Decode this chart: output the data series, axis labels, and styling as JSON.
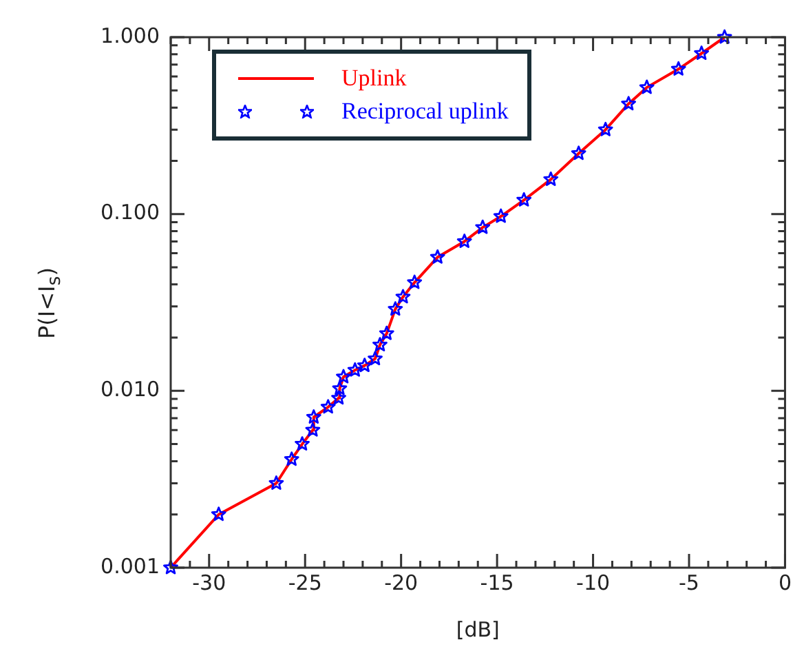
{
  "chart_data": {
    "type": "line",
    "xlabel": "[dB]",
    "ylabel": "P(I<I$_{s}$)",
    "x": [
      -32,
      -29.5,
      -26.5,
      -25.7,
      -25.15,
      -24.6,
      -24.55,
      -23.8,
      -23.25,
      -23.2,
      -23.0,
      -22.4,
      -21.9,
      -21.35,
      -21.1,
      -20.75,
      -20.3,
      -19.9,
      -19.3,
      -18.1,
      -16.7,
      -15.75,
      -14.8,
      -13.6,
      -12.2,
      -10.75,
      -9.35,
      -8.15,
      -7.2,
      -5.55,
      -4.35,
      -3.15
    ],
    "series": [
      {
        "name": "Uplink",
        "type": "line",
        "marker": "none",
        "color": "#ff0000",
        "values": [
          0.001,
          0.002,
          0.003,
          0.0041,
          0.005,
          0.006,
          0.0071,
          0.0081,
          0.0091,
          0.0103,
          0.012,
          0.0131,
          0.0139,
          0.0152,
          0.0182,
          0.0211,
          0.029,
          0.034,
          0.041,
          0.057,
          0.07,
          0.084,
          0.097,
          0.12,
          0.157,
          0.22,
          0.3,
          0.42,
          0.52,
          0.66,
          0.81,
          1.0
        ]
      },
      {
        "name": "Reciprocal uplink",
        "type": "scatter",
        "marker": "star",
        "color": "#0000ff",
        "values": [
          0.001,
          0.002,
          0.003,
          0.0041,
          0.005,
          0.006,
          0.0071,
          0.0081,
          0.0091,
          0.0103,
          0.012,
          0.0131,
          0.0139,
          0.0152,
          0.0182,
          0.0211,
          0.029,
          0.034,
          0.041,
          0.057,
          0.07,
          0.084,
          0.097,
          0.12,
          0.157,
          0.22,
          0.3,
          0.42,
          0.52,
          0.66,
          0.81,
          1.0
        ]
      }
    ],
    "log": "y",
    "xlim": [
      -32,
      0
    ],
    "ylim": [
      0.001,
      1
    ],
    "xticks": [
      {
        "value": -32,
        "label": null
      },
      {
        "value": -31,
        "label": null
      },
      -30,
      {
        "value": -29,
        "label": null
      },
      {
        "value": -28,
        "label": null
      },
      {
        "value": -27,
        "label": null
      },
      {
        "value": -26,
        "label": null
      },
      -25,
      {
        "value": -24,
        "label": null
      },
      {
        "value": -23,
        "label": null
      },
      {
        "value": -22,
        "label": null
      },
      {
        "value": -21,
        "label": null
      },
      -20,
      {
        "value": -19,
        "label": null
      },
      {
        "value": -18,
        "label": null
      },
      {
        "value": -17,
        "label": null
      },
      {
        "value": -16,
        "label": null
      },
      -15,
      {
        "value": -14,
        "label": null
      },
      {
        "value": -13,
        "label": null
      },
      {
        "value": -12,
        "label": null
      },
      {
        "value": -11,
        "label": null
      },
      -10,
      {
        "value": -9,
        "label": null
      },
      {
        "value": -8,
        "label": null
      },
      {
        "value": -7,
        "label": null
      },
      {
        "value": -6,
        "label": null
      },
      -5,
      {
        "value": -4,
        "label": null
      },
      {
        "value": -3,
        "label": null
      },
      {
        "value": -2,
        "label": null
      },
      {
        "value": -1,
        "label": null
      },
      0
    ],
    "yticks": [
      {
        "value": 0.001,
        "label": "0.001"
      },
      {
        "value": 0.002,
        "label": null
      },
      {
        "value": 0.003,
        "label": null
      },
      {
        "value": 0.004,
        "label": null
      },
      {
        "value": 0.005,
        "label": null
      },
      {
        "value": 0.006,
        "label": null
      },
      {
        "value": 0.007,
        "label": null
      },
      {
        "value": 0.008,
        "label": null
      },
      {
        "value": 0.009,
        "label": null
      },
      {
        "value": 0.01,
        "label": "0.010"
      },
      {
        "value": 0.02,
        "label": null
      },
      {
        "value": 0.03,
        "label": null
      },
      {
        "value": 0.04,
        "label": null
      },
      {
        "value": 0.05,
        "label": null
      },
      {
        "value": 0.06,
        "label": null
      },
      {
        "value": 0.07,
        "label": null
      },
      {
        "value": 0.08,
        "label": null
      },
      {
        "value": 0.09,
        "label": null
      },
      {
        "value": 0.1,
        "label": "0.100"
      },
      {
        "value": 0.2,
        "label": null
      },
      {
        "value": 0.3,
        "label": null
      },
      {
        "value": 0.4,
        "label": null
      },
      {
        "value": 0.5,
        "label": null
      },
      {
        "value": 0.6,
        "label": null
      },
      {
        "value": 0.7,
        "label": null
      },
      {
        "value": 0.8,
        "label": null
      },
      {
        "value": 0.9,
        "label": null
      },
      {
        "value": 1,
        "label": "1.000"
      }
    ],
    "grid": false,
    "legend": "top left"
  }
}
